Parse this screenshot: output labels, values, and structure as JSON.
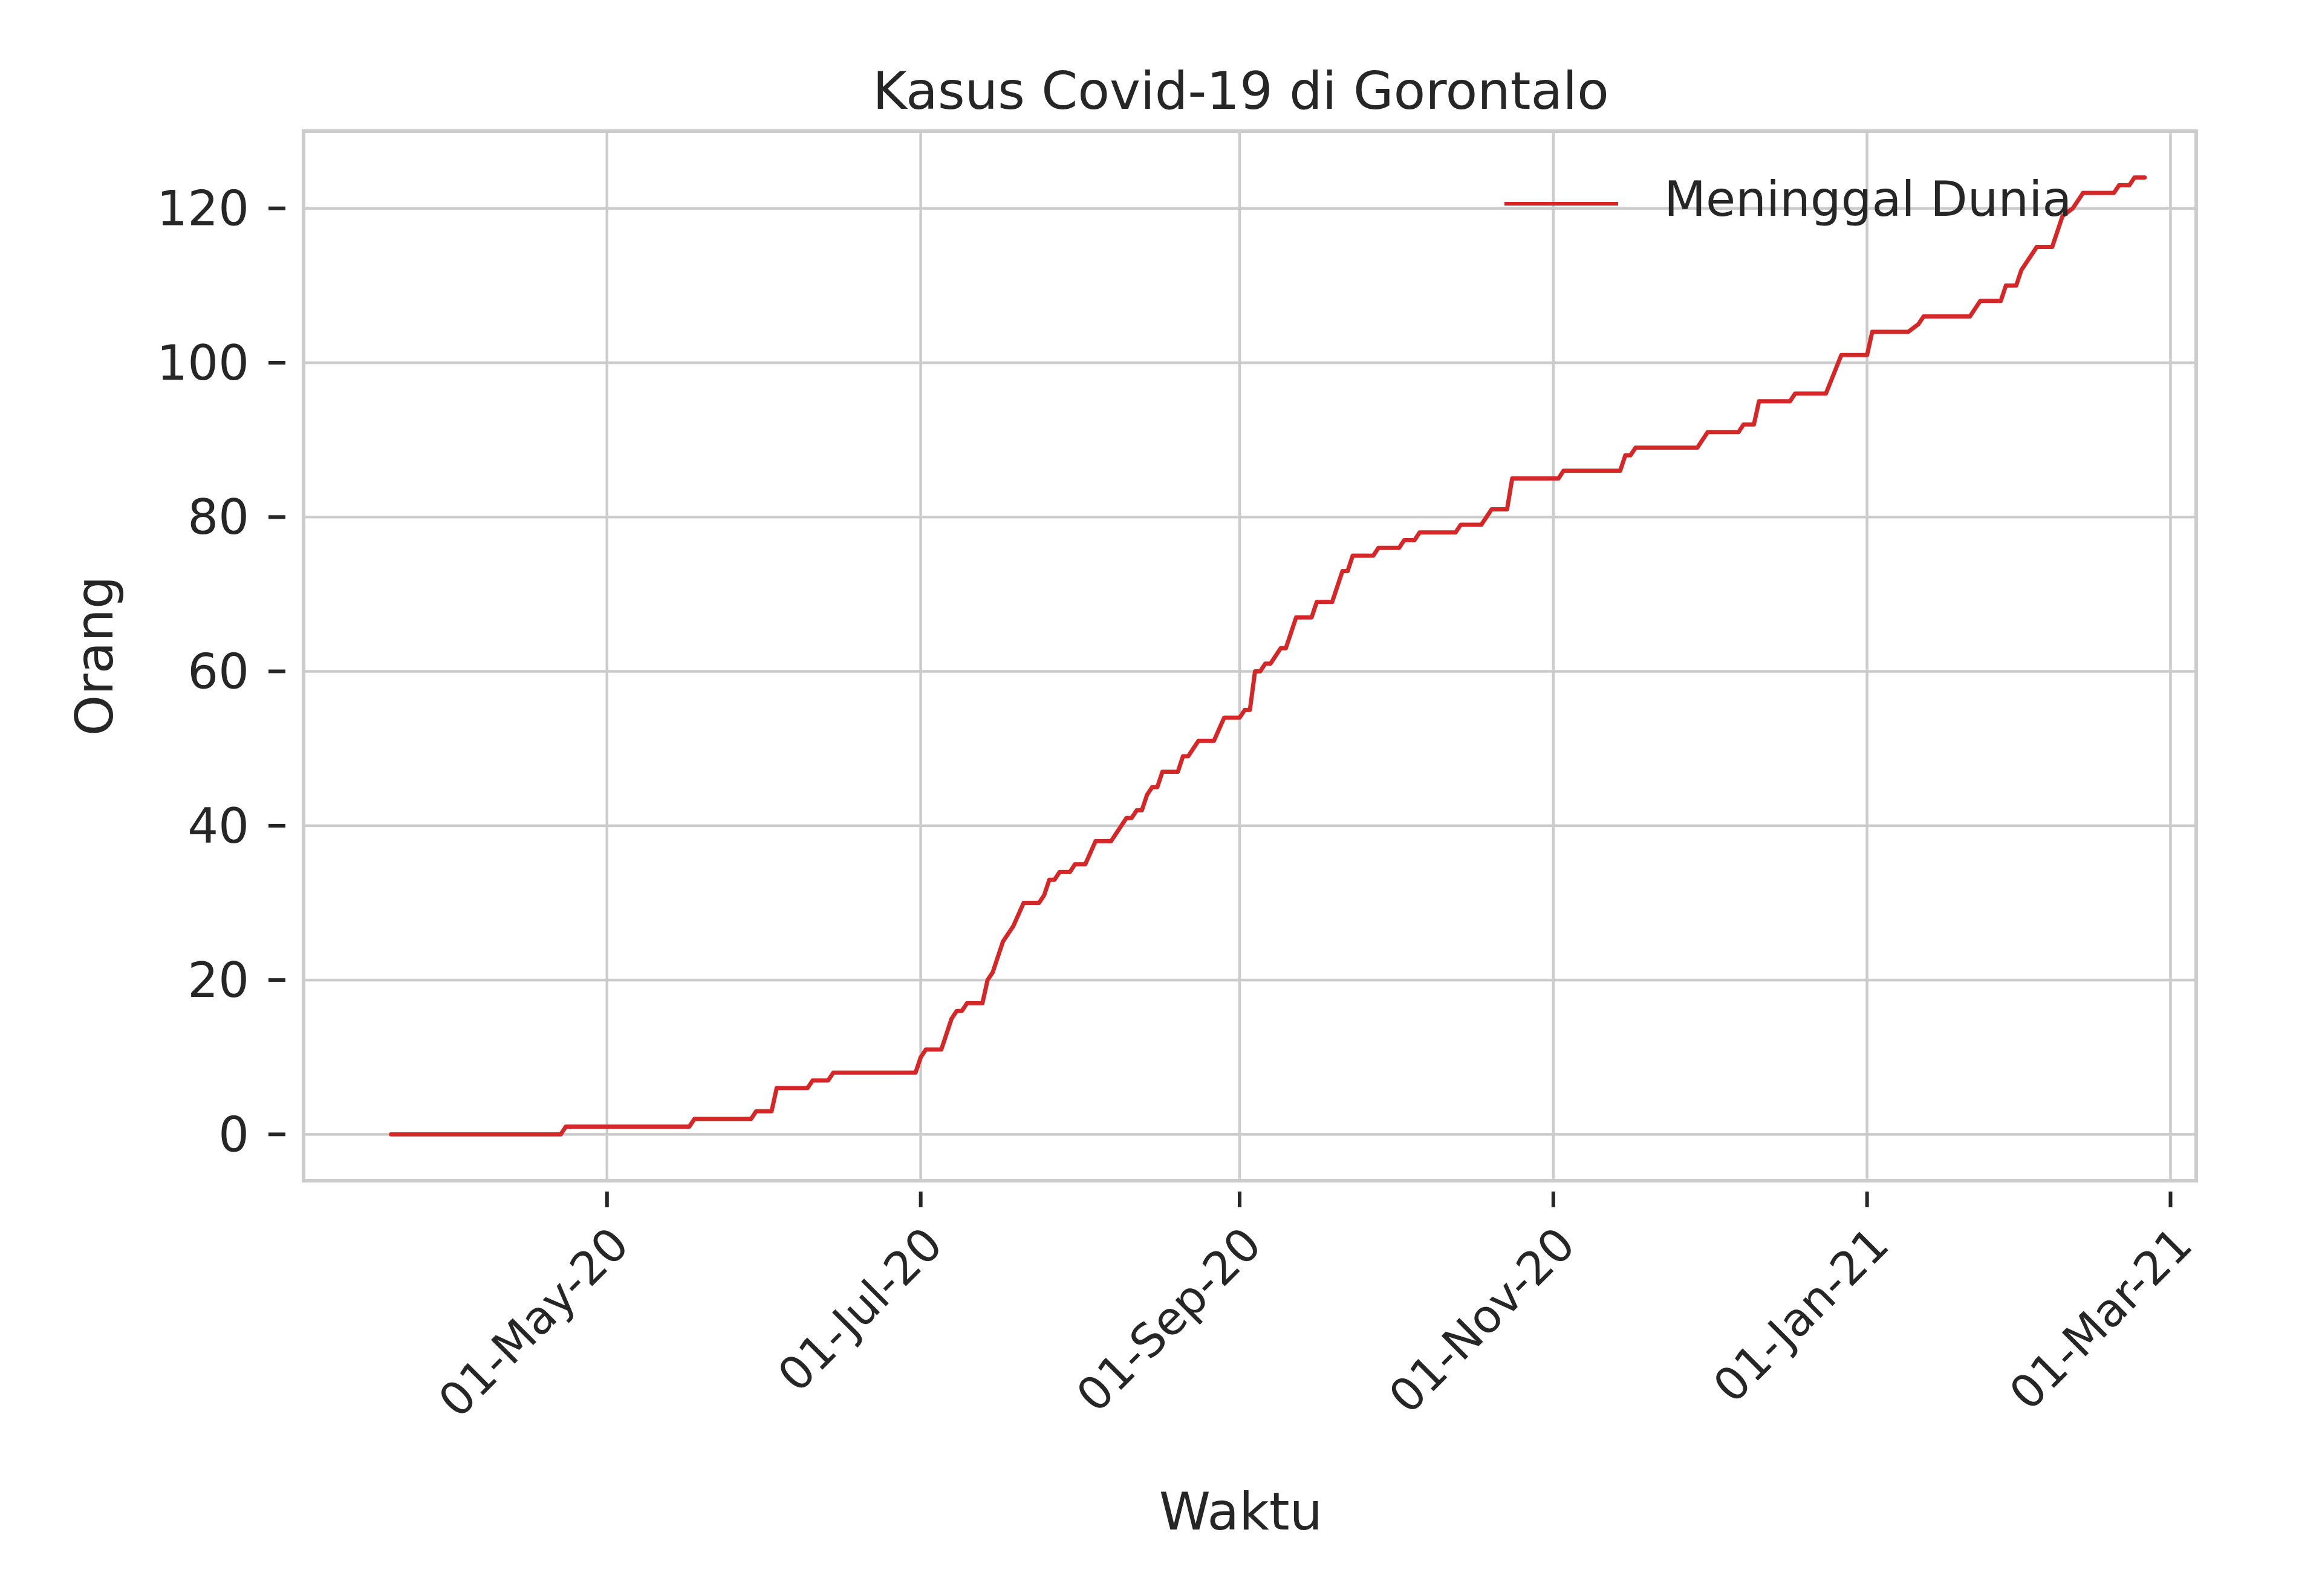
{
  "chart_data": {
    "type": "line",
    "title": "Kasus Covid-19 di Gorontalo",
    "xlabel": "Waktu",
    "ylabel": "Orang",
    "x_axis": {
      "type": "date",
      "ticks": [
        "2020-05-01",
        "2020-07-01",
        "2020-09-01",
        "2020-11-01",
        "2021-01-01",
        "2021-03-01"
      ],
      "tick_labels": [
        "01-May-20",
        "01-Jul-20",
        "01-Sep-20",
        "01-Nov-20",
        "01-Jan-21",
        "01-Mar-21"
      ],
      "range": [
        "2020-03-03",
        "2021-03-06"
      ]
    },
    "y_axis": {
      "ticks": [
        0,
        20,
        40,
        60,
        80,
        100,
        120
      ],
      "tick_labels": [
        "0",
        "20",
        "40",
        "60",
        "80",
        "100",
        "120"
      ],
      "range": [
        -6,
        130
      ]
    },
    "grid": true,
    "legend": {
      "position": "top-right"
    },
    "series": [
      {
        "name": "Meninggal Dunia",
        "color": "#d62728",
        "points": [
          [
            "2020-03-20",
            0
          ],
          [
            "2020-04-22",
            0
          ],
          [
            "2020-04-23",
            1
          ],
          [
            "2020-05-10",
            1
          ],
          [
            "2020-05-17",
            1
          ],
          [
            "2020-05-18",
            2
          ],
          [
            "2020-05-29",
            2
          ],
          [
            "2020-05-30",
            3
          ],
          [
            "2020-06-02",
            3
          ],
          [
            "2020-06-03",
            6
          ],
          [
            "2020-06-09",
            6
          ],
          [
            "2020-06-10",
            7
          ],
          [
            "2020-06-13",
            7
          ],
          [
            "2020-06-14",
            8
          ],
          [
            "2020-06-30",
            8
          ],
          [
            "2020-07-01",
            10
          ],
          [
            "2020-07-02",
            11
          ],
          [
            "2020-07-05",
            11
          ],
          [
            "2020-07-07",
            15
          ],
          [
            "2020-07-08",
            16
          ],
          [
            "2020-07-09",
            16
          ],
          [
            "2020-07-10",
            17
          ],
          [
            "2020-07-13",
            17
          ],
          [
            "2020-07-14",
            20
          ],
          [
            "2020-07-15",
            21
          ],
          [
            "2020-07-17",
            25
          ],
          [
            "2020-07-19",
            27
          ],
          [
            "2020-07-21",
            30
          ],
          [
            "2020-07-24",
            30
          ],
          [
            "2020-07-25",
            31
          ],
          [
            "2020-07-26",
            33
          ],
          [
            "2020-07-27",
            33
          ],
          [
            "2020-07-28",
            34
          ],
          [
            "2020-07-30",
            34
          ],
          [
            "2020-07-31",
            35
          ],
          [
            "2020-08-02",
            35
          ],
          [
            "2020-08-04",
            38
          ],
          [
            "2020-08-07",
            38
          ],
          [
            "2020-08-09",
            40
          ],
          [
            "2020-08-10",
            41
          ],
          [
            "2020-08-11",
            41
          ],
          [
            "2020-08-12",
            42
          ],
          [
            "2020-08-13",
            42
          ],
          [
            "2020-08-14",
            44
          ],
          [
            "2020-08-15",
            45
          ],
          [
            "2020-08-16",
            45
          ],
          [
            "2020-08-17",
            47
          ],
          [
            "2020-08-20",
            47
          ],
          [
            "2020-08-21",
            49
          ],
          [
            "2020-08-22",
            49
          ],
          [
            "2020-08-24",
            51
          ],
          [
            "2020-08-27",
            51
          ],
          [
            "2020-08-29",
            54
          ],
          [
            "2020-09-01",
            54
          ],
          [
            "2020-09-02",
            55
          ],
          [
            "2020-09-03",
            55
          ],
          [
            "2020-09-04",
            60
          ],
          [
            "2020-09-05",
            60
          ],
          [
            "2020-09-06",
            61
          ],
          [
            "2020-09-07",
            61
          ],
          [
            "2020-09-09",
            63
          ],
          [
            "2020-09-10",
            63
          ],
          [
            "2020-09-12",
            67
          ],
          [
            "2020-09-15",
            67
          ],
          [
            "2020-09-16",
            69
          ],
          [
            "2020-09-19",
            69
          ],
          [
            "2020-09-21",
            73
          ],
          [
            "2020-09-22",
            73
          ],
          [
            "2020-09-23",
            75
          ],
          [
            "2020-09-27",
            75
          ],
          [
            "2020-09-28",
            76
          ],
          [
            "2020-10-02",
            76
          ],
          [
            "2020-10-03",
            77
          ],
          [
            "2020-10-05",
            77
          ],
          [
            "2020-10-06",
            78
          ],
          [
            "2020-10-13",
            78
          ],
          [
            "2020-10-14",
            79
          ],
          [
            "2020-10-18",
            79
          ],
          [
            "2020-10-20",
            81
          ],
          [
            "2020-10-23",
            81
          ],
          [
            "2020-10-24",
            85
          ],
          [
            "2020-11-02",
            85
          ],
          [
            "2020-11-03",
            86
          ],
          [
            "2020-11-14",
            86
          ],
          [
            "2020-11-15",
            88
          ],
          [
            "2020-11-16",
            88
          ],
          [
            "2020-11-17",
            89
          ],
          [
            "2020-11-29",
            89
          ],
          [
            "2020-12-01",
            91
          ],
          [
            "2020-12-07",
            91
          ],
          [
            "2020-12-08",
            92
          ],
          [
            "2020-12-10",
            92
          ],
          [
            "2020-12-11",
            95
          ],
          [
            "2020-12-17",
            95
          ],
          [
            "2020-12-18",
            96
          ],
          [
            "2020-12-24",
            96
          ],
          [
            "2020-12-27",
            101
          ],
          [
            "2021-01-01",
            101
          ],
          [
            "2021-01-02",
            104
          ],
          [
            "2021-01-09",
            104
          ],
          [
            "2021-01-11",
            105
          ],
          [
            "2021-01-12",
            106
          ],
          [
            "2021-01-21",
            106
          ],
          [
            "2021-01-23",
            108
          ],
          [
            "2021-01-27",
            108
          ],
          [
            "2021-01-28",
            110
          ],
          [
            "2021-01-30",
            110
          ],
          [
            "2021-01-31",
            112
          ],
          [
            "2021-02-03",
            115
          ],
          [
            "2021-02-06",
            115
          ],
          [
            "2021-02-08",
            119
          ],
          [
            "2021-02-10",
            120
          ],
          [
            "2021-02-12",
            122
          ],
          [
            "2021-02-18",
            122
          ],
          [
            "2021-02-19",
            123
          ],
          [
            "2021-02-21",
            123
          ],
          [
            "2021-02-22",
            124
          ],
          [
            "2021-02-24",
            124
          ]
        ]
      }
    ]
  }
}
